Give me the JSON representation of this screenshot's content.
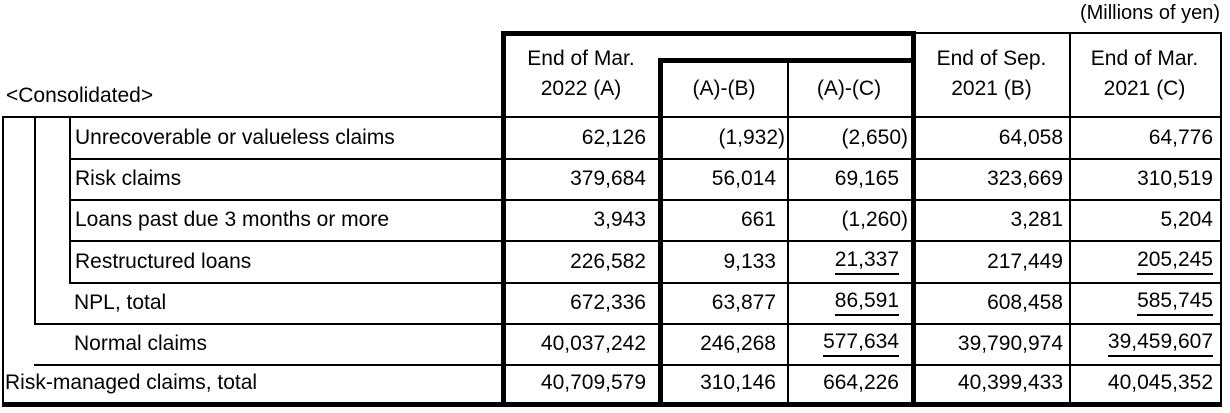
{
  "units_note": "(Millions of yen)",
  "scope_label": "<Consolidated>",
  "columns": {
    "a": {
      "line1": "End of Mar.",
      "line2": "2022 (A)"
    },
    "ab": {
      "label": "(A)-(B)"
    },
    "ac": {
      "label": "(A)-(C)"
    },
    "b": {
      "line1": "End of Sep.",
      "line2": "2021 (B)"
    },
    "c": {
      "line1": "End of Mar.",
      "line2": "2021 (C)"
    }
  },
  "rows": [
    {
      "label": "Unrecoverable or valueless claims",
      "a": "62,126",
      "ab": "(1,932)",
      "ac": "(2,650)",
      "b": "64,058",
      "c": "64,776"
    },
    {
      "label": "Risk claims",
      "a": "379,684",
      "ab": "56,014",
      "ac": "69,165",
      "b": "323,669",
      "c": "310,519"
    },
    {
      "label": "Loans past due 3 months or more",
      "a": "3,943",
      "ab": "661",
      "ac": "(1,260)",
      "b": "3,281",
      "c": "5,204"
    },
    {
      "label": "Restructured loans",
      "a": "226,582",
      "ab": "9,133",
      "ac": "21,337",
      "b": "217,449",
      "c": "205,245"
    },
    {
      "label": "NPL, total",
      "a": "672,336",
      "ab": "63,877",
      "ac": "86,591",
      "b": "608,458",
      "c": "585,745"
    },
    {
      "label": "Normal claims",
      "a": "40,037,242",
      "ab": "246,268",
      "ac": "577,634",
      "b": "39,790,974",
      "c": "39,459,607"
    },
    {
      "label": "Risk-managed claims, total",
      "a": "40,709,579",
      "ab": "310,146",
      "ac": "664,226",
      "b": "40,399,433",
      "c": "40,045,352"
    }
  ]
}
